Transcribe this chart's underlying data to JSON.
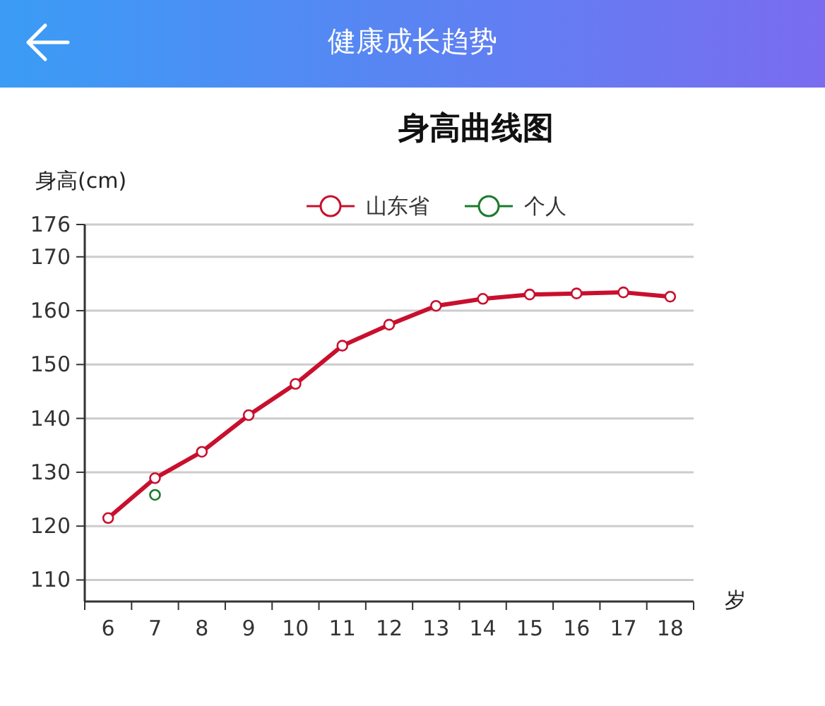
{
  "chart_data": {
    "type": "line",
    "title": "健康成长趋势",
    "subtitle": "身高曲线图",
    "xlabel": "岁",
    "ylabel": "身高(cm)",
    "categories": [
      "6",
      "7",
      "8",
      "9",
      "10",
      "11",
      "12",
      "13",
      "14",
      "15",
      "16",
      "17",
      "18"
    ],
    "series": [
      {
        "name": "山东省",
        "color": "#c8102e",
        "values": [
          121.5,
          128.9,
          133.8,
          140.6,
          146.4,
          153.5,
          157.4,
          160.9,
          162.2,
          163,
          163.2,
          163.4,
          162.6
        ]
      },
      {
        "name": "个人",
        "color": "#1a7a2e",
        "values": [
          null,
          125.8,
          null,
          null,
          null,
          null,
          null,
          null,
          null,
          null,
          null,
          null,
          null
        ]
      }
    ],
    "ylim": [
      106,
      176
    ],
    "yticks": [
      110,
      120,
      130,
      140,
      150,
      160,
      170,
      176
    ],
    "grid": "y",
    "legend": "top",
    "marker": "circle"
  }
}
